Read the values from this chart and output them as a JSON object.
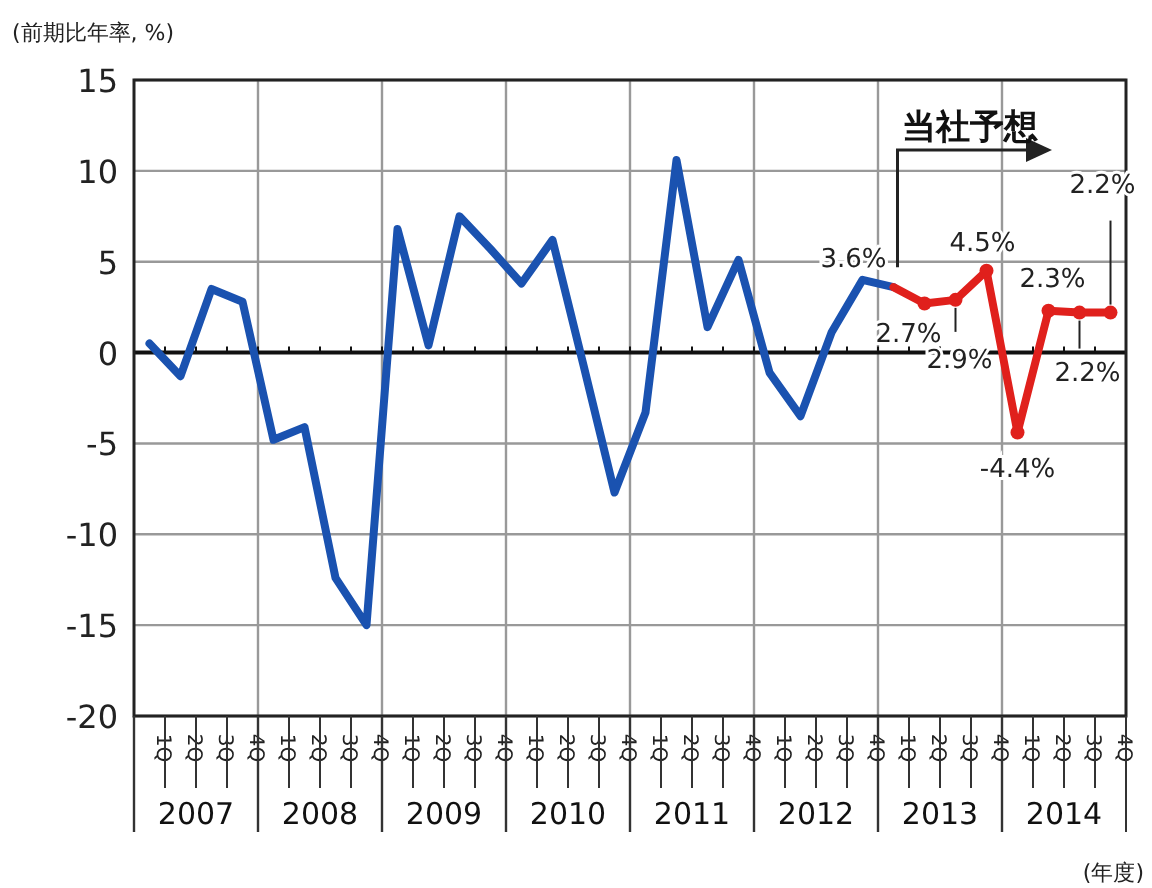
{
  "chart_data": {
    "type": "line",
    "ylabel": "(前期比年率, %)",
    "xlabel": "(年度)",
    "categories": [
      "1Q",
      "2Q",
      "3Q",
      "4Q",
      "1Q",
      "2Q",
      "3Q",
      "4Q",
      "1Q",
      "2Q",
      "3Q",
      "4Q",
      "1Q",
      "2Q",
      "3Q",
      "4Q",
      "1Q",
      "2Q",
      "3Q",
      "4Q",
      "1Q",
      "2Q",
      "3Q",
      "4Q",
      "1Q",
      "2Q",
      "3Q",
      "4Q",
      "1Q",
      "2Q",
      "3Q",
      "4Q"
    ],
    "series": [
      {
        "color": "#1a52b0",
        "marker": "none",
        "values": [
          0.5,
          -1.3,
          3.5,
          2.8,
          -4.8,
          -4.1,
          -12.4,
          -15,
          6.8,
          0.4,
          7.5,
          5.7,
          3.8,
          6.2,
          -0.7,
          -7.7,
          -3.3,
          10.6,
          1.4,
          5.1,
          -1.1,
          -3.5,
          1.1,
          4.0,
          3.6,
          null,
          null,
          null,
          null,
          null,
          null,
          null
        ],
        "value_labels": [
          null,
          null,
          null,
          null,
          null,
          null,
          null,
          null,
          null,
          null,
          null,
          null,
          null,
          null,
          null,
          null,
          null,
          null,
          null,
          null,
          null,
          null,
          null,
          null,
          "3.6%",
          null,
          null,
          null,
          null,
          null,
          null,
          null
        ]
      },
      {
        "color": "#e0201c",
        "marker": "circle",
        "values": [
          null,
          null,
          null,
          null,
          null,
          null,
          null,
          null,
          null,
          null,
          null,
          null,
          null,
          null,
          null,
          null,
          null,
          null,
          null,
          null,
          null,
          null,
          null,
          null,
          3.6,
          2.7,
          2.9,
          4.5,
          -4.4,
          2.3,
          2.2,
          2.2
        ],
        "value_labels": [
          null,
          null,
          null,
          null,
          null,
          null,
          null,
          null,
          null,
          null,
          null,
          null,
          null,
          null,
          null,
          null,
          null,
          null,
          null,
          null,
          null,
          null,
          null,
          null,
          null,
          "2.7%",
          "2.9%",
          "4.5%",
          "-4.4%",
          "2.3%",
          "2.2%",
          "2.2%"
        ]
      }
    ],
    "ylim": [
      -20,
      15
    ],
    "yticks": [
      -20,
      -15,
      -10,
      -5,
      0,
      5,
      10,
      15
    ],
    "grid": true,
    "annotations": [
      "2007",
      "2008",
      "2009",
      "2010",
      "2011",
      "2012",
      "2013",
      "2014",
      "当社予想"
    ]
  }
}
